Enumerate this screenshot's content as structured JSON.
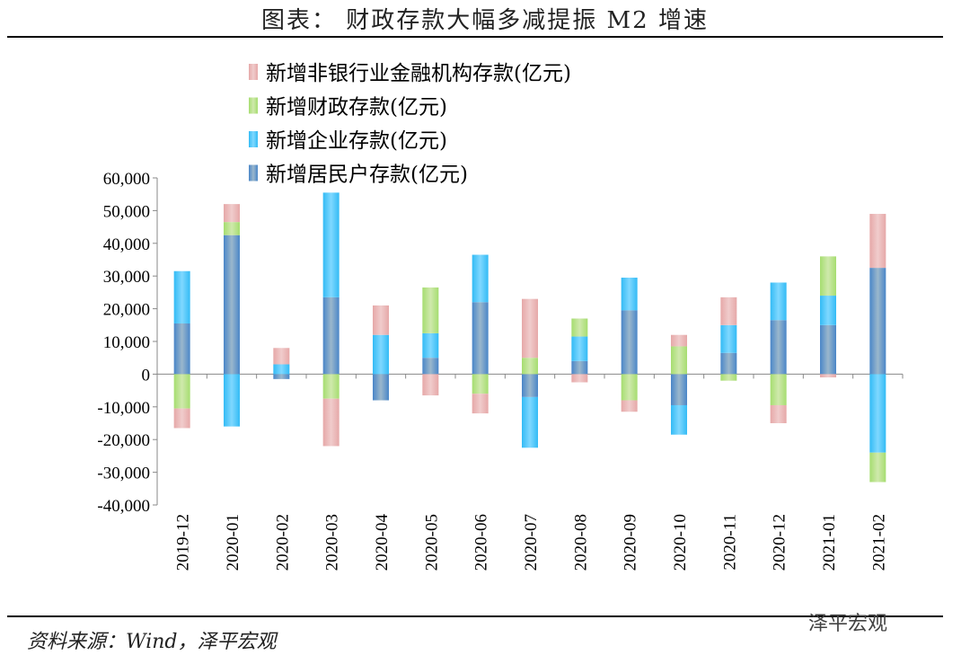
{
  "title": "图表： 财政存款大幅多减提振 M2 增速",
  "source": "资料来源：Wind，泽平宏观",
  "watermark": "泽平宏观",
  "chart_data": {
    "type": "bar",
    "stacked": true,
    "ylim": [
      -40000,
      60000
    ],
    "yticks": [
      "60,000",
      "50,000",
      "40,000",
      "30,000",
      "20,000",
      "10,000",
      "0",
      "-10,000",
      "-20,000",
      "-30,000",
      "-40,000"
    ],
    "ytick_values": [
      60000,
      50000,
      40000,
      30000,
      20000,
      10000,
      0,
      -10000,
      -20000,
      -30000,
      -40000
    ],
    "categories": [
      "2019-12",
      "2020-01",
      "2020-02",
      "2020-03",
      "2020-04",
      "2020-05",
      "2020-06",
      "2020-07",
      "2020-08",
      "2020-09",
      "2020-10",
      "2020-11",
      "2020-12",
      "2021-01",
      "2021-02"
    ],
    "series": [
      {
        "name": "新增居民户存款(亿元)",
        "color": "#4a86c8",
        "values": [
          15500,
          42500,
          -1500,
          23500,
          -8000,
          5000,
          22000,
          -7000,
          4000,
          19500,
          -9500,
          6500,
          16500,
          15000,
          32500
        ]
      },
      {
        "name": "新增企业存款(亿元)",
        "color": "#33bbf5",
        "values": [
          16000,
          -16000,
          3000,
          32000,
          12000,
          7500,
          14500,
          -15500,
          7500,
          10000,
          -9000,
          8500,
          11500,
          9000,
          -24000
        ]
      },
      {
        "name": "新增财政存款(亿元)",
        "color": "#a6dd70",
        "values": [
          -10500,
          4000,
          0,
          -7500,
          0,
          14000,
          -6000,
          5000,
          5500,
          -8000,
          8500,
          -2000,
          -9500,
          12000,
          -9000
        ]
      },
      {
        "name": "新增非银行业金融机构存款(亿元)",
        "color": "#e6a8a8",
        "values": [
          -6000,
          5500,
          5000,
          -14500,
          9000,
          -6500,
          -6000,
          18000,
          -2500,
          -3500,
          3500,
          8500,
          -5500,
          -1000,
          16500
        ]
      }
    ],
    "legend_order": [
      3,
      2,
      1,
      0
    ],
    "legend_position": "top-center"
  }
}
